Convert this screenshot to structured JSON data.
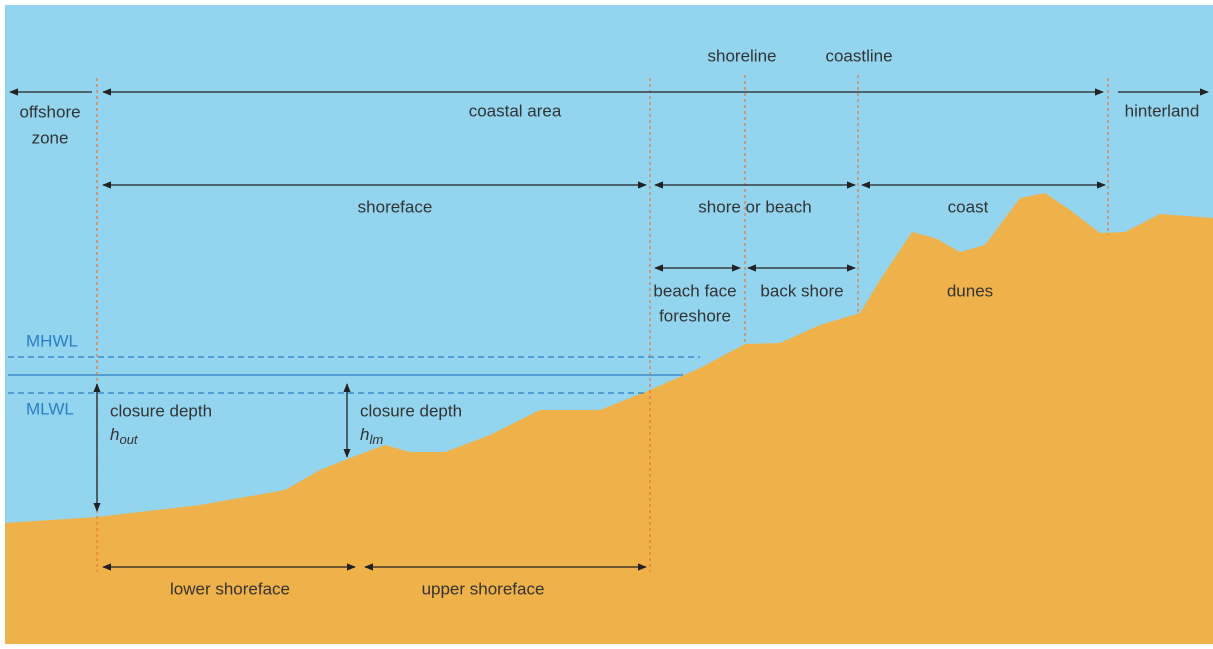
{
  "markers": {
    "shoreline": "shoreline",
    "coastline": "coastline"
  },
  "zones": {
    "offshore_zone": [
      "offshore",
      "zone"
    ],
    "coastal_area": "coastal area",
    "hinterland": "hinterland",
    "shoreface": "shoreface",
    "shore_or_beach": "shore or beach",
    "coast": "coast",
    "beach_face": [
      "beach face",
      "foreshore"
    ],
    "back_shore": "back shore",
    "dunes": "dunes",
    "lower_shoreface": "lower shoreface",
    "upper_shoreface": "upper shoreface"
  },
  "water_levels": {
    "mhwl": "MHWL",
    "mlwl": "MLWL"
  },
  "depths": [
    {
      "label": "closure depth",
      "symbol": "h",
      "subscript": "out"
    },
    {
      "label": "closure depth",
      "symbol": "h",
      "subscript": "lm"
    }
  ]
}
